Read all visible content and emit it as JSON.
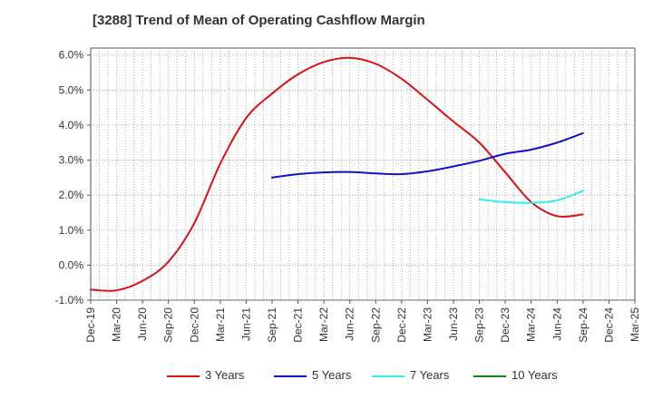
{
  "chart_data": {
    "type": "line",
    "title": "[3288]  Trend of Mean of Operating Cashflow Margin",
    "xlabel": "",
    "ylabel": "",
    "x": [
      "Dec-19",
      "Mar-20",
      "Jun-20",
      "Sep-20",
      "Dec-20",
      "Mar-21",
      "Jun-21",
      "Sep-21",
      "Dec-21",
      "Mar-22",
      "Jun-22",
      "Sep-22",
      "Dec-22",
      "Mar-23",
      "Jun-23",
      "Sep-23",
      "Dec-23",
      "Mar-24",
      "Jun-24",
      "Sep-24",
      "Dec-24",
      "Mar-25"
    ],
    "ylim": [
      -1.0,
      6.2
    ],
    "yticks": [
      -1.0,
      0.0,
      1.0,
      2.0,
      3.0,
      4.0,
      5.0,
      6.0
    ],
    "ytick_labels": [
      "-1.0%",
      "0.0%",
      "1.0%",
      "2.0%",
      "3.0%",
      "4.0%",
      "5.0%",
      "6.0%"
    ],
    "grid": true,
    "legend_position": "bottom",
    "series": [
      {
        "name": "3 Years",
        "color": "#dd1111",
        "values": [
          -0.7,
          -0.72,
          -0.45,
          0.1,
          1.2,
          2.9,
          4.2,
          4.9,
          5.45,
          5.8,
          5.92,
          5.75,
          5.32,
          4.72,
          4.1,
          3.5,
          2.65,
          1.8,
          1.4,
          1.45,
          null,
          null
        ]
      },
      {
        "name": "5 Years",
        "color": "#1111cc",
        "values": [
          null,
          null,
          null,
          null,
          null,
          null,
          null,
          2.5,
          2.6,
          2.65,
          2.66,
          2.62,
          2.6,
          2.68,
          2.82,
          2.98,
          3.18,
          3.3,
          3.5,
          3.77,
          null,
          null
        ]
      },
      {
        "name": "7 Years",
        "color": "#33eeee",
        "values": [
          null,
          null,
          null,
          null,
          null,
          null,
          null,
          null,
          null,
          null,
          null,
          null,
          null,
          null,
          null,
          1.88,
          1.8,
          1.78,
          1.85,
          2.12,
          null,
          null
        ]
      },
      {
        "name": "10 Years",
        "color": "#118811",
        "values": [
          null,
          null,
          null,
          null,
          null,
          null,
          null,
          null,
          null,
          null,
          null,
          null,
          null,
          null,
          null,
          null,
          null,
          null,
          null,
          null,
          null,
          null
        ]
      }
    ]
  }
}
